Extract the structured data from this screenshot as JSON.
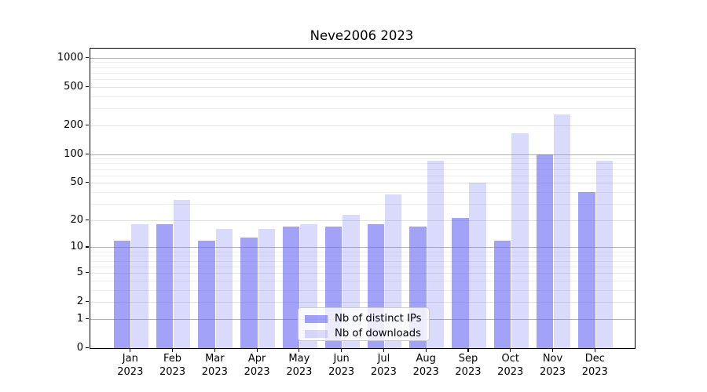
{
  "figure": {
    "title": "Neve2006 2023"
  },
  "legend": {
    "items": [
      {
        "label": "Nb of distinct IPs"
      },
      {
        "label": "Nb of downloads"
      }
    ]
  },
  "colors": {
    "series0_fill": "rgba(100,100,245,0.60)",
    "series1_fill": "rgba(100,100,245,0.24)",
    "grid_decade": "#b3b3b3",
    "grid_mid": "#e2e2e2",
    "grid_minor": "#eeeeee",
    "spine": "#000000"
  },
  "chart_data": {
    "type": "bar",
    "title": "Neve2006 2023",
    "categories": [
      "Jan 2023",
      "Feb 2023",
      "Mar 2023",
      "Apr 2023",
      "May 2023",
      "Jun 2023",
      "Jul 2023",
      "Aug 2023",
      "Sep 2023",
      "Oct 2023",
      "Nov 2023",
      "Dec 2023"
    ],
    "series": [
      {
        "name": "Nb of distinct IPs",
        "values": [
          12,
          18,
          12,
          13,
          17,
          17,
          18,
          17,
          21,
          12,
          100,
          40
        ]
      },
      {
        "name": "Nb of downloads",
        "values": [
          18,
          33,
          16,
          16,
          18,
          23,
          38,
          85,
          50,
          165,
          260,
          85
        ]
      }
    ],
    "xlabel": "",
    "ylabel": "",
    "yscale": "log1p",
    "yticks": [
      0,
      1,
      2,
      5,
      10,
      20,
      50,
      100,
      200,
      500,
      1000
    ],
    "ylim": [
      0,
      1200
    ],
    "grid": true,
    "legend_position": "lower center"
  }
}
